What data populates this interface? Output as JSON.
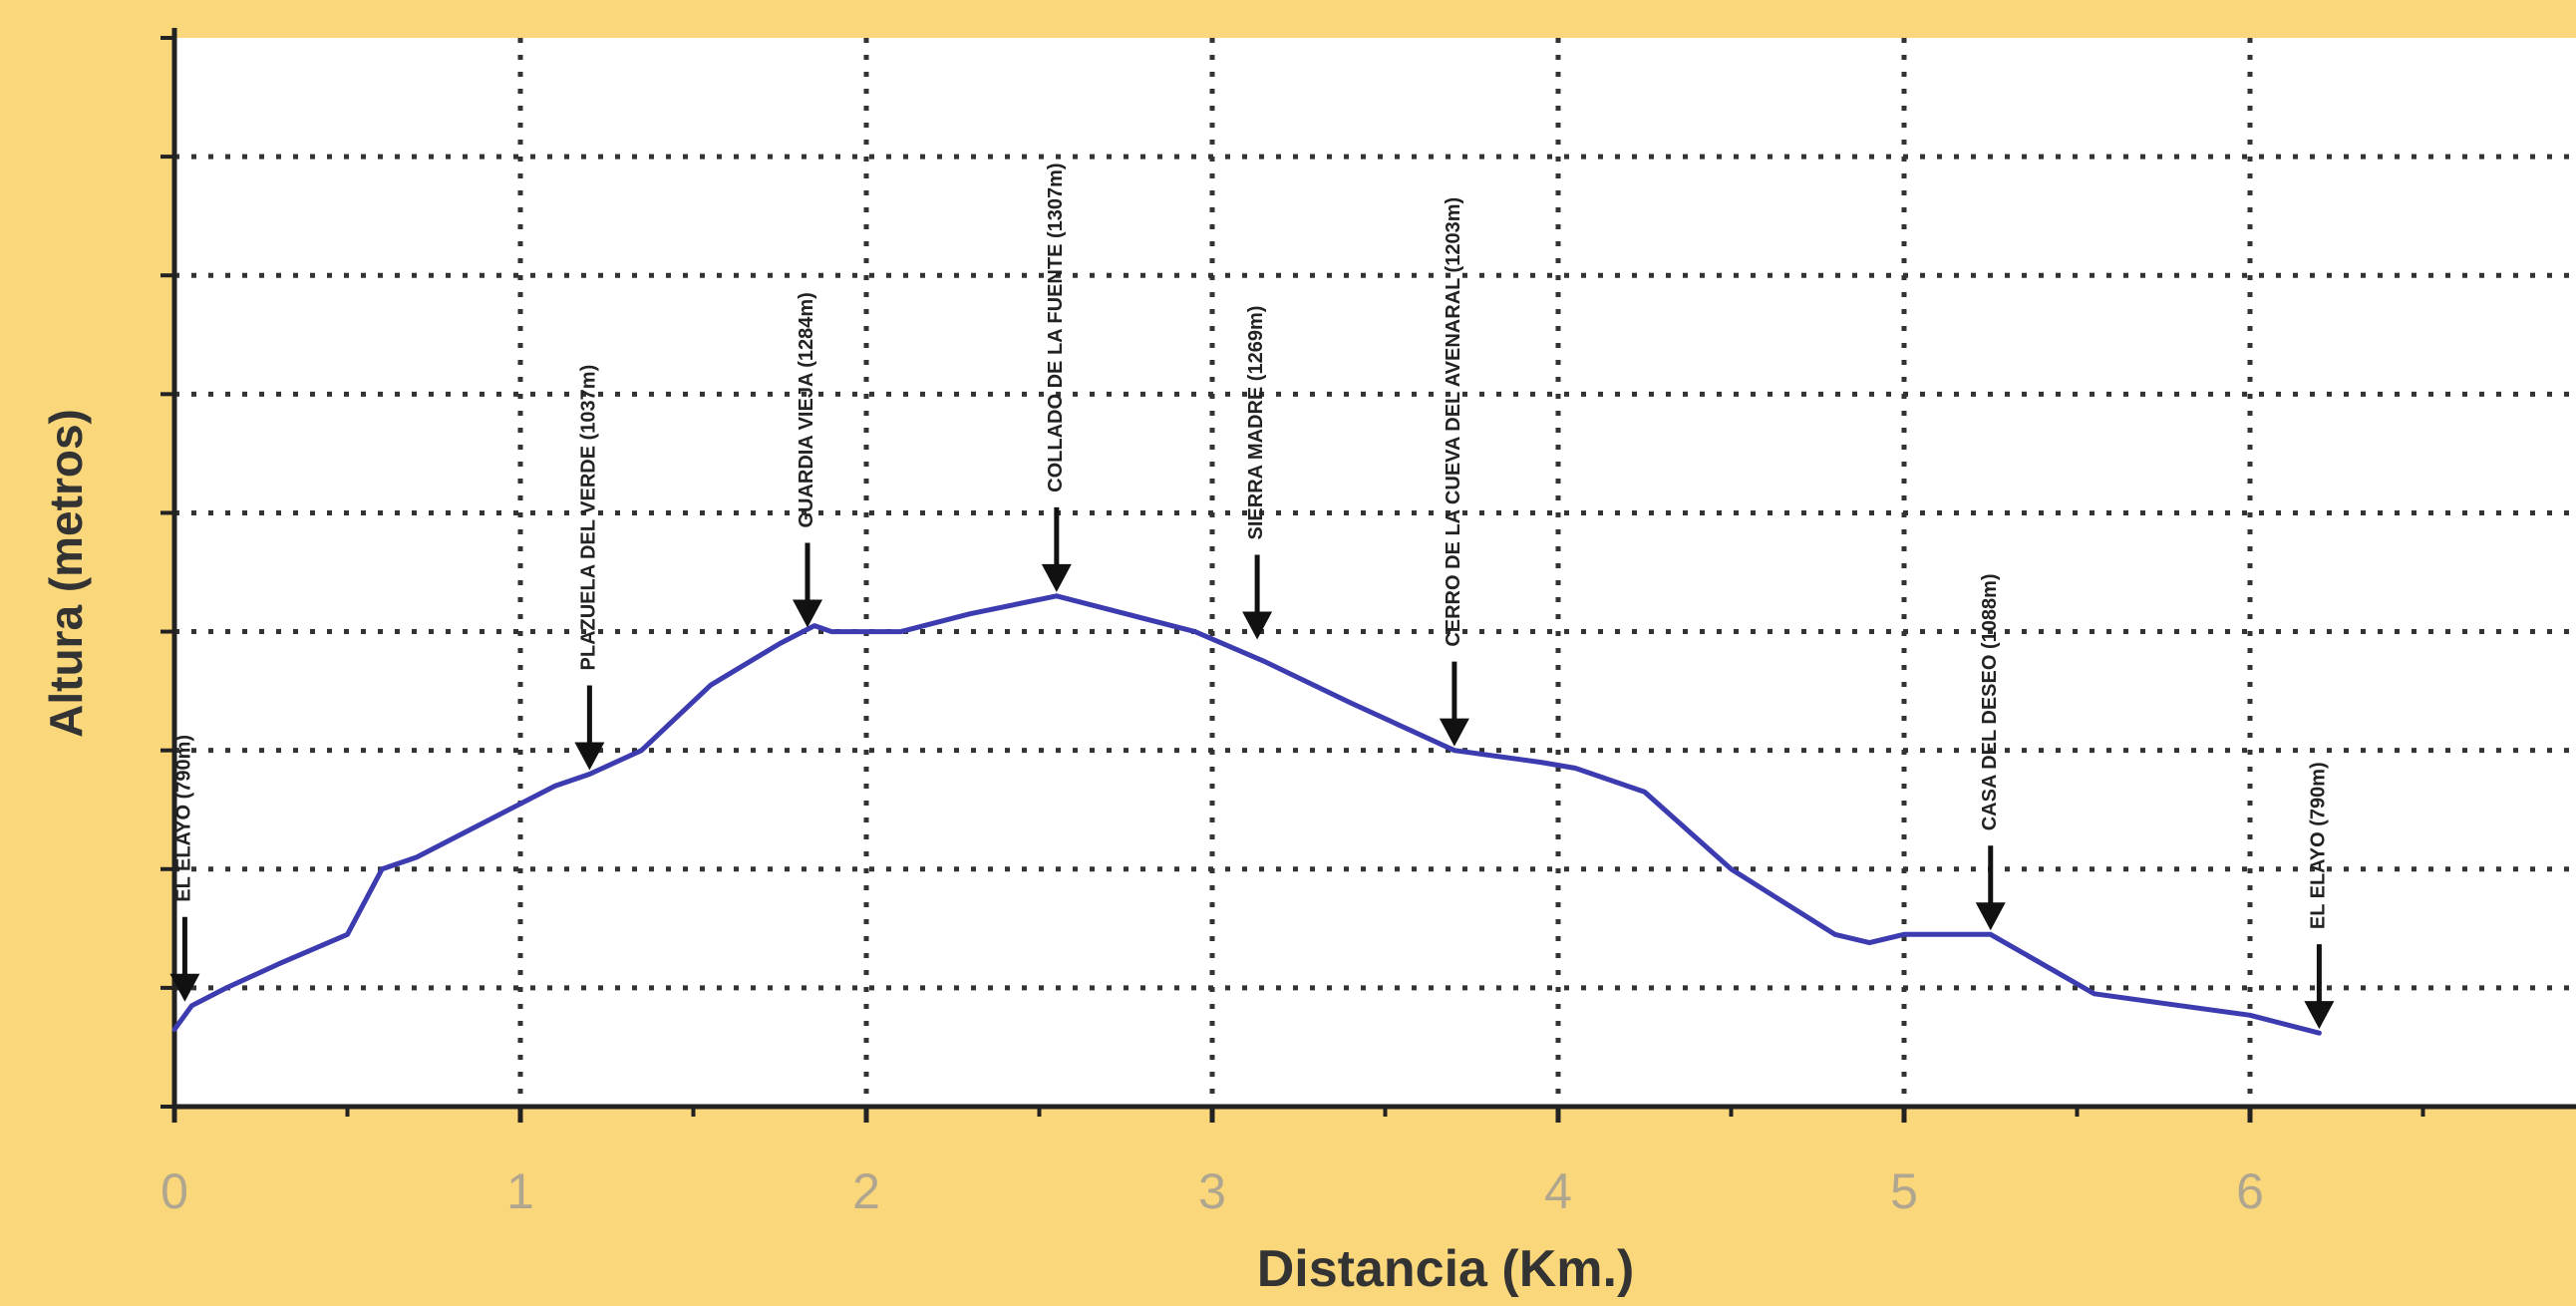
{
  "chart_data": {
    "type": "line",
    "xlabel": "Distancia (Km.)",
    "ylabel": "Altura (metros)",
    "xlim": [
      0,
      7.5
    ],
    "x_ticks": [
      "0",
      "1",
      "2",
      "3",
      "4",
      "5",
      "6"
    ],
    "ylim": [
      0,
      9
    ],
    "grid": true,
    "series": [
      {
        "x": [
          0,
          0.05,
          0.15,
          0.3,
          0.5,
          0.6,
          0.7,
          0.9,
          1.1,
          1.2,
          1.35,
          1.55,
          1.75,
          1.85,
          1.9,
          2.1,
          2.3,
          2.55,
          2.75,
          2.95,
          3.15,
          3.4,
          3.7,
          3.95,
          4.05,
          4.25,
          4.5,
          4.8,
          4.9,
          5.0,
          5.25,
          5.55,
          5.8,
          6.0,
          6.2
        ],
        "y": [
          0.65,
          0.85,
          1.0,
          1.2,
          1.45,
          2.0,
          2.1,
          2.4,
          2.7,
          2.8,
          3.0,
          3.55,
          3.9,
          4.05,
          4.0,
          4.0,
          4.15,
          4.3,
          4.15,
          4.0,
          3.75,
          3.4,
          3.0,
          2.9,
          2.85,
          2.65,
          2.0,
          1.45,
          1.38,
          1.45,
          1.45,
          0.95,
          0.85,
          0.77,
          0.62
        ],
        "color": "#3c3cb0"
      }
    ],
    "annotations": [
      {
        "x": 0.03,
        "y": 0.85,
        "label": "EL ELAYO (790m)"
      },
      {
        "x": 1.2,
        "y": 2.8,
        "label": "PLAZUELA DEL VERDE (1037m)"
      },
      {
        "x": 1.83,
        "y": 4.0,
        "label": "GUARDIA VIEJA (1284m)"
      },
      {
        "x": 2.55,
        "y": 4.3,
        "label": "COLLADO DE LA FUENTE (1307m)"
      },
      {
        "x": 3.13,
        "y": 3.9,
        "label": "SIERRA MADRE (1269m)"
      },
      {
        "x": 3.7,
        "y": 3.0,
        "label": "CERRO DE LA CUEVA DEL AVENARAL (1203m)"
      },
      {
        "x": 5.25,
        "y": 1.45,
        "label": "CASA DEL DESEO (1088m)"
      },
      {
        "x": 6.2,
        "y": 0.62,
        "label": "EL ELAYO (790m)"
      }
    ]
  }
}
